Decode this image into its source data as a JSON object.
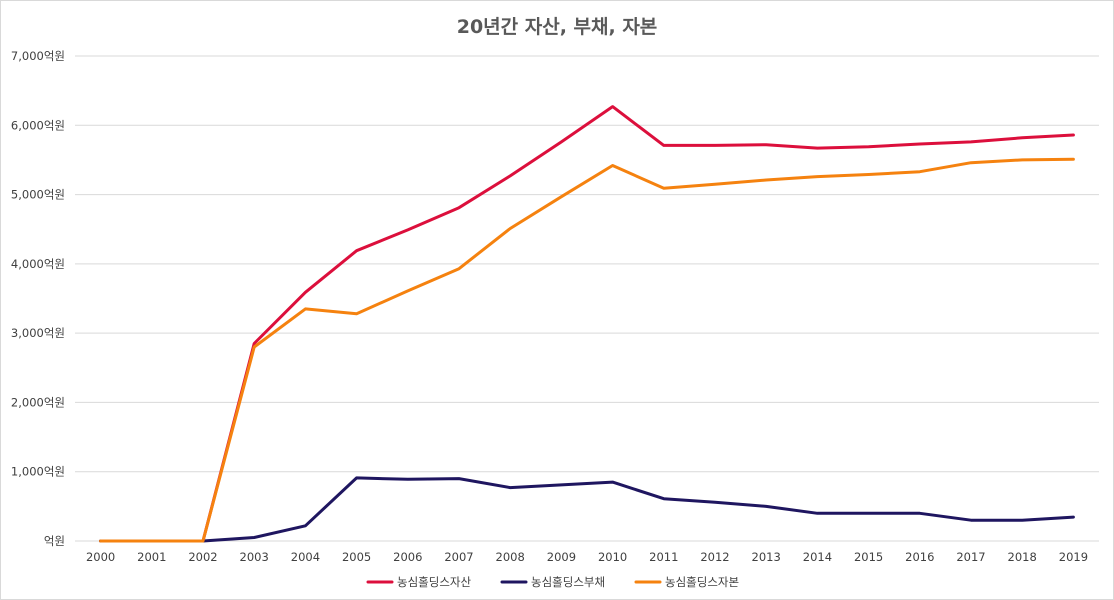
{
  "chart_data": {
    "type": "line",
    "title": "20년간 자산, 부채, 자본",
    "categories": [
      "2000",
      "2001",
      "2002",
      "2003",
      "2004",
      "2005",
      "2006",
      "2007",
      "2008",
      "2009",
      "2010",
      "2011",
      "2012",
      "2013",
      "2014",
      "2015",
      "2016",
      "2017",
      "2018",
      "2019"
    ],
    "y_ticks": [
      {
        "value": 0,
        "label": "억원"
      },
      {
        "value": 1000,
        "label": "1,000억원"
      },
      {
        "value": 2000,
        "label": "2,000억원"
      },
      {
        "value": 3000,
        "label": "3,000억원"
      },
      {
        "value": 4000,
        "label": "4,000억원"
      },
      {
        "value": 5000,
        "label": "5,000억원"
      },
      {
        "value": 6000,
        "label": "6,000억원"
      },
      {
        "value": 7000,
        "label": "7,000억원"
      }
    ],
    "ylim": [
      0,
      7000
    ],
    "grid": true,
    "legend_position": "bottom",
    "series": [
      {
        "name": "농심홀딩스자산",
        "color": "#dc0f3c",
        "values": [
          0,
          0,
          0,
          2850,
          3590,
          4190,
          4490,
          4810,
          5270,
          5760,
          6270,
          5710,
          5710,
          5720,
          5670,
          5690,
          5730,
          5760,
          5820,
          5860
        ]
      },
      {
        "name": "농심홀딩스부채",
        "color": "#1f1660",
        "values": [
          0,
          0,
          0,
          50,
          220,
          910,
          890,
          900,
          770,
          810,
          850,
          610,
          560,
          500,
          400,
          400,
          400,
          300,
          300,
          345
        ]
      },
      {
        "name": "농심홀딩스자본",
        "color": "#f5820f",
        "values": [
          0,
          0,
          0,
          2800,
          3350,
          3280,
          3610,
          3930,
          4510,
          4970,
          5420,
          5090,
          5150,
          5210,
          5260,
          5290,
          5330,
          5460,
          5500,
          5510
        ]
      }
    ]
  }
}
